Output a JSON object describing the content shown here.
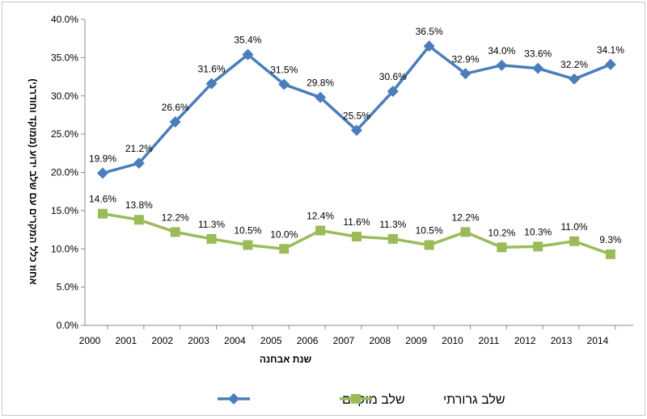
{
  "chart_data": {
    "type": "line",
    "title": "",
    "xlabel": "שנת אבחנה",
    "ylabel": "אחוז כלל המקרים עם שלב ידוע (ממוקד וחודרני)",
    "categories": [
      "2000",
      "2001",
      "2002",
      "2003",
      "2004",
      "2005",
      "2006",
      "2007",
      "2008",
      "2009",
      "2010",
      "2011",
      "2012",
      "2013",
      "2014"
    ],
    "ylim": [
      0,
      40
    ],
    "yticks": [
      "0.0%",
      "5.0%",
      "10.0%",
      "15.0%",
      "20.0%",
      "25.0%",
      "30.0%",
      "35.0%",
      "40.0%"
    ],
    "grid": false,
    "legend": "bottom",
    "series": [
      {
        "name": "שלב מוקדם",
        "color": "#4a7ebb",
        "marker": "diamond",
        "values": [
          19.9,
          21.2,
          26.6,
          31.6,
          35.4,
          31.5,
          29.8,
          25.5,
          30.6,
          36.5,
          32.9,
          34.0,
          33.6,
          32.2,
          34.1
        ]
      },
      {
        "name": "שלב גרורתי",
        "color": "#9bbb59",
        "marker": "square",
        "values": [
          14.6,
          13.8,
          12.2,
          11.3,
          10.5,
          10.0,
          12.4,
          11.6,
          11.3,
          10.5,
          12.2,
          10.2,
          10.3,
          11.0,
          9.3
        ]
      }
    ]
  }
}
